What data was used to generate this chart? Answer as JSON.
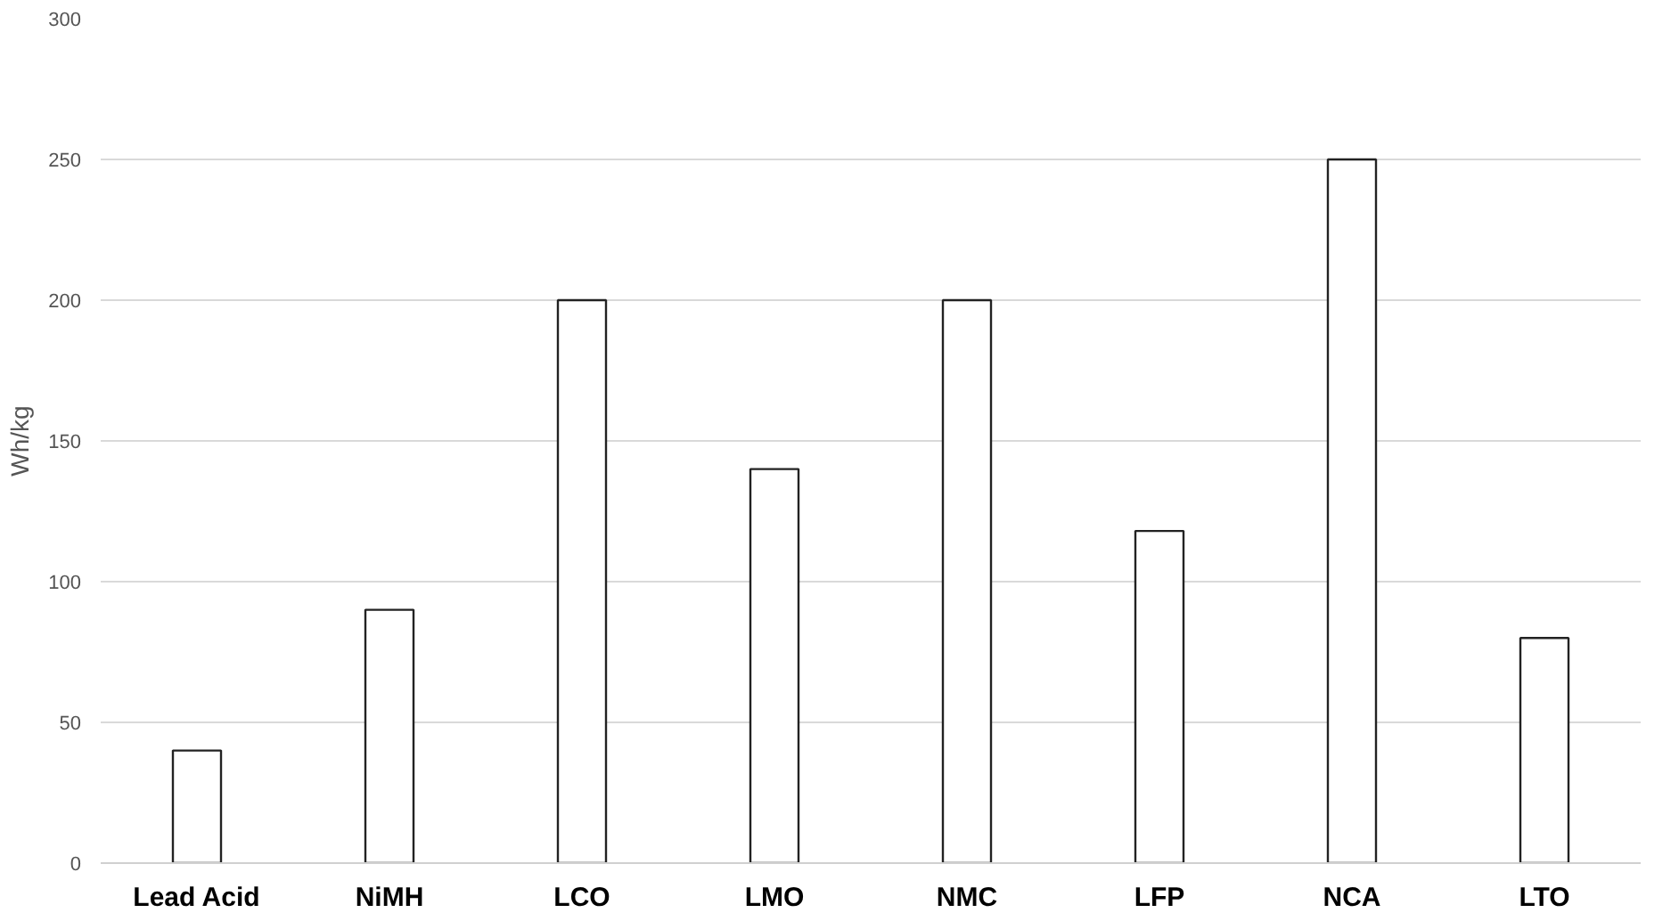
{
  "chart_data": {
    "type": "bar",
    "ylabel": "Wh/kg",
    "categories": [
      "Lead Acid",
      "NiMH",
      "LCO",
      "LMO",
      "NMC",
      "LFP",
      "NCA",
      "LTO"
    ],
    "values": [
      40,
      90,
      200,
      140,
      200,
      118,
      250,
      80
    ],
    "color": "#ffffff",
    "ylim": [
      0,
      300
    ],
    "yticks": [
      0,
      50,
      100,
      150,
      200,
      250,
      300
    ],
    "grid": "y"
  }
}
